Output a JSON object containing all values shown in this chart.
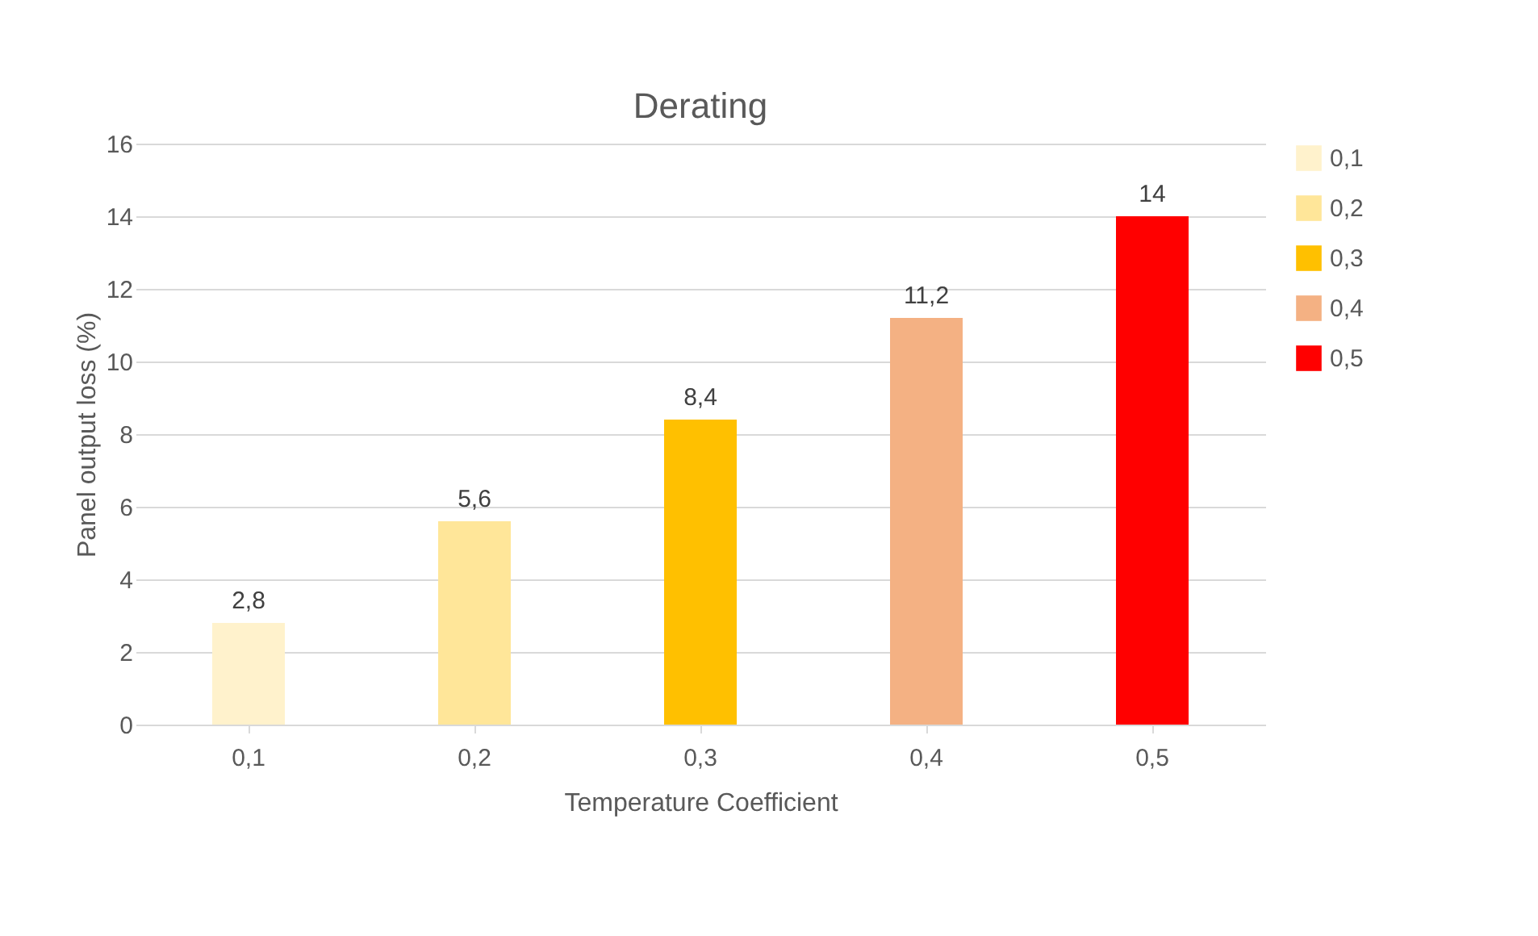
{
  "chart_data": {
    "type": "bar",
    "title": "Derating",
    "xlabel": "Temperature Coefficient",
    "ylabel": "Panel output loss (%)",
    "categories": [
      "0,1",
      "0,2",
      "0,3",
      "0,4",
      "0,5"
    ],
    "series": [
      {
        "name": "0,1",
        "color": "#fff2cc",
        "values": [
          2.8,
          null,
          null,
          null,
          null
        ],
        "value_labels": [
          "2,8",
          null,
          null,
          null,
          null
        ]
      },
      {
        "name": "0,2",
        "color": "#ffe699",
        "values": [
          null,
          5.6,
          null,
          null,
          null
        ],
        "value_labels": [
          null,
          "5,6",
          null,
          null,
          null
        ]
      },
      {
        "name": "0,3",
        "color": "#ffc000",
        "values": [
          null,
          null,
          8.4,
          null,
          null
        ],
        "value_labels": [
          null,
          null,
          "8,4",
          null,
          null
        ]
      },
      {
        "name": "0,4",
        "color": "#f4b183",
        "values": [
          null,
          null,
          null,
          11.2,
          null
        ],
        "value_labels": [
          null,
          null,
          null,
          "11,2",
          null
        ]
      },
      {
        "name": "0,5",
        "color": "#ff0000",
        "values": [
          null,
          null,
          null,
          null,
          14
        ],
        "value_labels": [
          null,
          null,
          null,
          null,
          "14"
        ]
      }
    ],
    "ylim": [
      0,
      16
    ],
    "yticks": [
      0,
      2,
      4,
      6,
      8,
      10,
      12,
      14,
      16
    ],
    "grid": "y",
    "legend": "right"
  }
}
